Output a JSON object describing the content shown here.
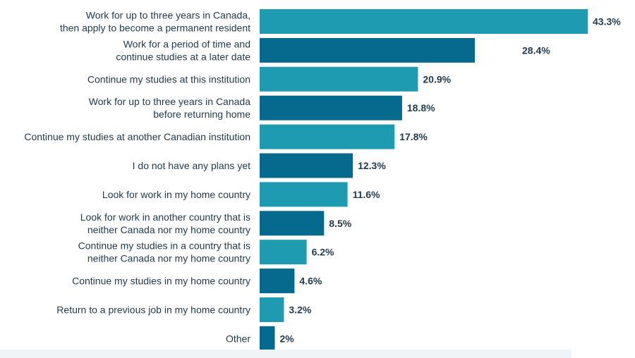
{
  "chart_data": {
    "type": "bar",
    "orientation": "horizontal",
    "categories": [
      "Work for up to three years in Canada,\nthen apply to become a permanent resident",
      "Work for a period of time and\ncontinue studies at a later date",
      "Continue my studies at this institution",
      "Work for up to three years in Canada\nbefore returning home",
      "Continue my studies at another Canadian institution",
      "I do not have any plans yet",
      "Look for work in my home country",
      "Look for work in another country that is\nneither Canada nor my home country",
      "Continue my studies in a country that is\nneither Canada nor my home country",
      "Continue my studies in my home country",
      "Return to a previous job in my home country",
      "Other"
    ],
    "values": [
      43.3,
      28.4,
      20.9,
      18.8,
      17.8,
      12.3,
      11.6,
      8.5,
      6.2,
      4.6,
      3.2,
      2
    ],
    "value_labels": [
      "43.3%",
      "28.4%",
      "20.9%",
      "18.8%",
      "17.8%",
      "12.3%",
      "11.6%",
      "8.5%",
      "6.2%",
      "4.6%",
      "3.2%",
      "2%"
    ],
    "xlim": [
      0,
      43.3
    ],
    "grid": false,
    "colors": [
      "#1e9bb0",
      "#066a8e"
    ]
  }
}
